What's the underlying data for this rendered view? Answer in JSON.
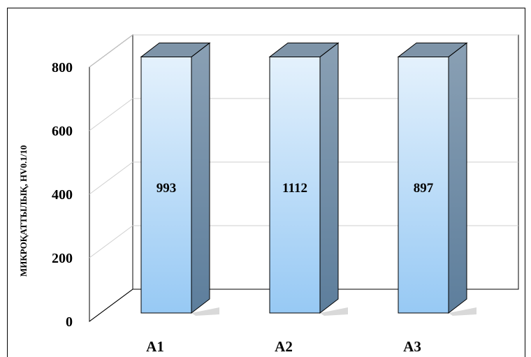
{
  "chart_data": {
    "type": "bar",
    "categories": [
      "A1",
      "A2",
      "A3"
    ],
    "values": [
      993,
      1112,
      897
    ],
    "data_labels": [
      "993",
      "1112",
      "897"
    ],
    "ylabel": "МИКРОҚАТТЫЛЫҚ, HV0.1/10",
    "xlabel": "",
    "title": "",
    "ylim": [
      0,
      800
    ],
    "yticks": [
      0,
      200,
      400,
      600,
      800
    ],
    "grid": true,
    "style": "3d-column",
    "colors": {
      "bar_front_top": "#e4f1fc",
      "bar_front_bottom": "#97c9f4",
      "bar_side": "#6a8aa6",
      "bar_top": "#7e94a8",
      "grid": "#cfcfcf",
      "axis": "#000000"
    }
  }
}
